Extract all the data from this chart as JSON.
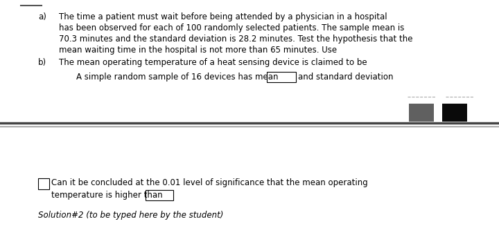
{
  "bg_color": "#ffffff",
  "line_color": "#000000",
  "text_a_label": "a)",
  "text_a_content": "The time a patient must wait before being attended by a physician in a hospital\nhas been observed for each of 100 randomly selected patients. The sample mean is\n70.3 minutes and the standard deviation is 28.2 minutes. Test the hypothesis that the\nmean waiting time in the hospital is not more than 65 minutes. Use",
  "text_b_label": "b)",
  "text_b_content": "The mean operating temperature of a heat sensing device is claimed to be",
  "text_indent": "A simple random sample of 16 devices has mean",
  "text_indent_suffix": "and standard deviation",
  "bottom_text1": "Can it be concluded at the 0.01 level of significance that the mean operating",
  "bottom_text2": "temperature is higher than",
  "solution_text": "Solution#2 (to be typed here by the student)",
  "rect_gray_color": "#606060",
  "rect_black_color": "#0a0a0a",
  "font_size": 8.5
}
